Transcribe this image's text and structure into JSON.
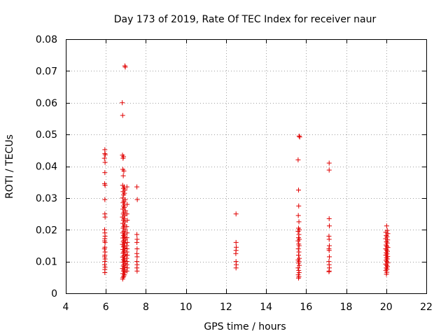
{
  "chart_data": {
    "type": "scatter",
    "title": "Day 173 of 2019, Rate Of TEC Index for receiver naur",
    "xlabel": "GPS time / hours",
    "ylabel": "ROTI / TECUs",
    "xlim": [
      4,
      22
    ],
    "ylim": [
      0,
      0.08
    ],
    "xticks": [
      4,
      6,
      8,
      10,
      12,
      14,
      16,
      18,
      20,
      22
    ],
    "yticks": [
      0,
      0.01,
      0.02,
      0.03,
      0.04,
      0.05,
      0.06,
      0.07,
      0.08
    ],
    "xtick_labels": [
      "4",
      "6",
      "8",
      "10",
      "12",
      "14",
      "16",
      "18",
      "20",
      "22"
    ],
    "ytick_labels": [
      "0",
      "0.01",
      "0.02",
      "0.03",
      "0.04",
      "0.05",
      "0.06",
      "0.07",
      "0.08"
    ],
    "grid": true,
    "marker": "+",
    "series": [
      {
        "name": "ROTI",
        "color": "#e00000",
        "points": [
          [
            5.95,
            0.0452
          ],
          [
            5.95,
            0.044
          ],
          [
            5.97,
            0.0436
          ],
          [
            5.93,
            0.0425
          ],
          [
            5.96,
            0.0412
          ],
          [
            5.95,
            0.038
          ],
          [
            5.94,
            0.0345
          ],
          [
            5.96,
            0.034
          ],
          [
            5.95,
            0.0295
          ],
          [
            5.95,
            0.025
          ],
          [
            5.96,
            0.024
          ],
          [
            5.94,
            0.02
          ],
          [
            5.95,
            0.019
          ],
          [
            5.96,
            0.018
          ],
          [
            5.95,
            0.0172
          ],
          [
            5.94,
            0.0165
          ],
          [
            5.96,
            0.016
          ],
          [
            5.95,
            0.0145
          ],
          [
            5.93,
            0.014
          ],
          [
            5.96,
            0.013
          ],
          [
            5.95,
            0.012
          ],
          [
            5.94,
            0.0115
          ],
          [
            5.96,
            0.0108
          ],
          [
            5.95,
            0.01
          ],
          [
            5.94,
            0.009
          ],
          [
            5.96,
            0.0082
          ],
          [
            5.95,
            0.0075
          ],
          [
            5.95,
            0.0065
          ],
          [
            6.95,
            0.0716
          ],
          [
            6.97,
            0.0712
          ],
          [
            6.82,
            0.06
          ],
          [
            6.84,
            0.056
          ],
          [
            6.83,
            0.0435
          ],
          [
            6.88,
            0.043
          ],
          [
            6.86,
            0.0425
          ],
          [
            6.85,
            0.039
          ],
          [
            6.9,
            0.0385
          ],
          [
            6.87,
            0.037
          ],
          [
            6.84,
            0.034
          ],
          [
            6.92,
            0.0335
          ],
          [
            6.88,
            0.033
          ],
          [
            6.95,
            0.0325
          ],
          [
            6.86,
            0.032
          ],
          [
            6.93,
            0.0315
          ],
          [
            6.89,
            0.031
          ],
          [
            6.84,
            0.03
          ],
          [
            6.97,
            0.0295
          ],
          [
            6.9,
            0.029
          ],
          [
            6.86,
            0.0285
          ],
          [
            6.94,
            0.028
          ],
          [
            6.88,
            0.0275
          ],
          [
            6.92,
            0.027
          ],
          [
            6.85,
            0.0265
          ],
          [
            6.98,
            0.026
          ],
          [
            6.9,
            0.0255
          ],
          [
            6.87,
            0.025
          ],
          [
            6.95,
            0.0245
          ],
          [
            6.83,
            0.024
          ],
          [
            6.91,
            0.0235
          ],
          [
            6.88,
            0.023
          ],
          [
            6.96,
            0.0225
          ],
          [
            6.85,
            0.022
          ],
          [
            6.93,
            0.0215
          ],
          [
            6.89,
            0.021
          ],
          [
            6.86,
            0.0205
          ],
          [
            6.97,
            0.02
          ],
          [
            6.9,
            0.0195
          ],
          [
            6.84,
            0.019
          ],
          [
            6.94,
            0.0186
          ],
          [
            6.88,
            0.0182
          ],
          [
            6.92,
            0.0178
          ],
          [
            6.85,
            0.0174
          ],
          [
            6.98,
            0.017
          ],
          [
            6.9,
            0.0166
          ],
          [
            6.87,
            0.0162
          ],
          [
            6.95,
            0.0158
          ],
          [
            6.83,
            0.0154
          ],
          [
            6.91,
            0.015
          ],
          [
            6.88,
            0.0146
          ],
          [
            6.96,
            0.0142
          ],
          [
            6.85,
            0.0138
          ],
          [
            6.93,
            0.0134
          ],
          [
            6.89,
            0.013
          ],
          [
            6.86,
            0.0126
          ],
          [
            6.97,
            0.0122
          ],
          [
            6.9,
            0.0118
          ],
          [
            6.84,
            0.0114
          ],
          [
            6.94,
            0.011
          ],
          [
            6.88,
            0.0106
          ],
          [
            6.92,
            0.0102
          ],
          [
            6.85,
            0.0098
          ],
          [
            6.98,
            0.0094
          ],
          [
            6.9,
            0.009
          ],
          [
            6.87,
            0.0086
          ],
          [
            6.95,
            0.0082
          ],
          [
            6.83,
            0.0078
          ],
          [
            6.91,
            0.0074
          ],
          [
            6.88,
            0.007
          ],
          [
            6.96,
            0.0066
          ],
          [
            6.85,
            0.0062
          ],
          [
            6.93,
            0.0058
          ],
          [
            6.89,
            0.0054
          ],
          [
            6.86,
            0.005
          ],
          [
            6.84,
            0.0045
          ],
          [
            7.05,
            0.0335
          ],
          [
            7.06,
            0.028
          ],
          [
            7.05,
            0.025
          ],
          [
            7.07,
            0.023
          ],
          [
            7.04,
            0.021
          ],
          [
            7.06,
            0.019
          ],
          [
            7.05,
            0.0175
          ],
          [
            7.07,
            0.016
          ],
          [
            7.04,
            0.015
          ],
          [
            7.06,
            0.014
          ],
          [
            7.05,
            0.013
          ],
          [
            7.07,
            0.012
          ],
          [
            7.04,
            0.011
          ],
          [
            7.06,
            0.01
          ],
          [
            7.05,
            0.009
          ],
          [
            7.07,
            0.008
          ],
          [
            7.05,
            0.007
          ],
          [
            7.55,
            0.0335
          ],
          [
            7.57,
            0.0295
          ],
          [
            7.55,
            0.0185
          ],
          [
            7.56,
            0.017
          ],
          [
            7.55,
            0.016
          ],
          [
            7.56,
            0.014
          ],
          [
            7.55,
            0.0125
          ],
          [
            7.56,
            0.0115
          ],
          [
            7.55,
            0.01
          ],
          [
            7.56,
            0.009
          ],
          [
            7.55,
            0.008
          ],
          [
            7.56,
            0.007
          ],
          [
            12.5,
            0.025
          ],
          [
            12.5,
            0.016
          ],
          [
            12.51,
            0.0145
          ],
          [
            12.5,
            0.0135
          ],
          [
            12.49,
            0.0125
          ],
          [
            12.5,
            0.01
          ],
          [
            12.51,
            0.009
          ],
          [
            12.5,
            0.008
          ],
          [
            15.65,
            0.0495
          ],
          [
            15.68,
            0.0492
          ],
          [
            15.6,
            0.042
          ],
          [
            15.62,
            0.0325
          ],
          [
            15.63,
            0.0275
          ],
          [
            15.61,
            0.0245
          ],
          [
            15.64,
            0.0225
          ],
          [
            15.62,
            0.0205
          ],
          [
            15.66,
            0.02
          ],
          [
            15.6,
            0.0195
          ],
          [
            15.64,
            0.0185
          ],
          [
            15.62,
            0.0175
          ],
          [
            15.66,
            0.017
          ],
          [
            15.6,
            0.0165
          ],
          [
            15.63,
            0.0155
          ],
          [
            15.65,
            0.015
          ],
          [
            15.61,
            0.014
          ],
          [
            15.64,
            0.013
          ],
          [
            15.62,
            0.012
          ],
          [
            15.66,
            0.011
          ],
          [
            15.6,
            0.0105
          ],
          [
            15.64,
            0.01
          ],
          [
            15.62,
            0.0095
          ],
          [
            15.66,
            0.0088
          ],
          [
            15.6,
            0.008
          ],
          [
            15.63,
            0.0072
          ],
          [
            15.65,
            0.0065
          ],
          [
            15.61,
            0.0058
          ],
          [
            15.64,
            0.0052
          ],
          [
            15.62,
            0.0048
          ],
          [
            17.15,
            0.041
          ],
          [
            17.15,
            0.0388
          ],
          [
            17.15,
            0.0235
          ],
          [
            17.16,
            0.0212
          ],
          [
            17.14,
            0.018
          ],
          [
            17.15,
            0.017
          ],
          [
            17.16,
            0.015
          ],
          [
            17.14,
            0.014
          ],
          [
            17.15,
            0.0135
          ],
          [
            17.16,
            0.0115
          ],
          [
            17.14,
            0.01
          ],
          [
            17.15,
            0.009
          ],
          [
            17.16,
            0.008
          ],
          [
            17.15,
            0.007
          ],
          [
            17.14,
            0.0068
          ],
          [
            20.02,
            0.0212
          ],
          [
            20.05,
            0.0198
          ],
          [
            19.98,
            0.0192
          ],
          [
            20.08,
            0.0188
          ],
          [
            20.0,
            0.0182
          ],
          [
            20.04,
            0.0178
          ],
          [
            19.97,
            0.0172
          ],
          [
            20.07,
            0.0168
          ],
          [
            20.01,
            0.0162
          ],
          [
            20.05,
            0.0158
          ],
          [
            19.99,
            0.0152
          ],
          [
            20.03,
            0.0148
          ],
          [
            20.08,
            0.0144
          ],
          [
            19.97,
            0.014
          ],
          [
            20.02,
            0.0136
          ],
          [
            20.06,
            0.0132
          ],
          [
            20.0,
            0.0128
          ],
          [
            20.04,
            0.0124
          ],
          [
            19.98,
            0.012
          ],
          [
            20.07,
            0.0116
          ],
          [
            20.01,
            0.0112
          ],
          [
            20.05,
            0.0108
          ],
          [
            19.99,
            0.0104
          ],
          [
            20.03,
            0.01
          ],
          [
            20.08,
            0.0096
          ],
          [
            19.97,
            0.0092
          ],
          [
            20.02,
            0.0088
          ],
          [
            20.06,
            0.0084
          ],
          [
            20.0,
            0.008
          ],
          [
            20.04,
            0.0076
          ],
          [
            19.98,
            0.0072
          ],
          [
            20.03,
            0.0066
          ],
          [
            20.01,
            0.006
          ]
        ]
      }
    ]
  }
}
